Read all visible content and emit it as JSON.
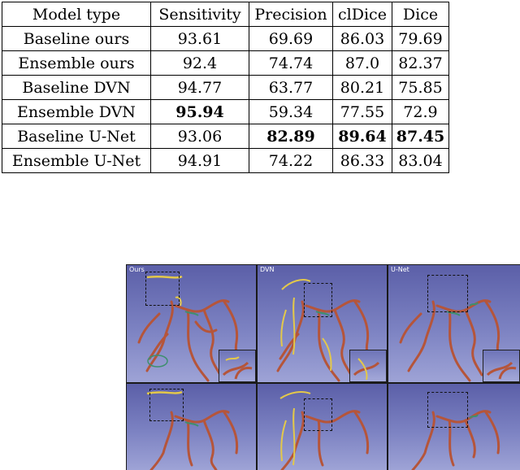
{
  "table": {
    "headers": [
      "Model type",
      "Sensitivity",
      "Precision",
      "clDice",
      "Dice"
    ],
    "rows": [
      {
        "cells": [
          "Baseline ours",
          "93.61",
          "69.69",
          "86.03",
          "79.69"
        ],
        "bold": []
      },
      {
        "cells": [
          "Ensemble ours",
          "92.4",
          "74.74",
          "87.0",
          "82.37"
        ],
        "bold": []
      },
      {
        "cells": [
          "Baseline DVN",
          "94.77",
          "63.77",
          "80.21",
          "75.85"
        ],
        "bold": []
      },
      {
        "cells": [
          "Ensemble DVN",
          "95.94",
          "59.34",
          "77.55",
          "72.9"
        ],
        "bold": [
          1
        ]
      },
      {
        "cells": [
          "Baseline U-Net",
          "93.06",
          "82.89",
          "89.64",
          "87.45"
        ],
        "bold": [
          2,
          3,
          4
        ]
      },
      {
        "cells": [
          "Ensemble U-Net",
          "94.91",
          "74.22",
          "86.33",
          "83.04"
        ],
        "bold": []
      }
    ]
  },
  "figure": {
    "panel_labels": [
      "Ours",
      "DVN",
      "U-Net"
    ],
    "colors": {
      "background_top": "#5b5fa8",
      "background_bottom": "#9ea3d6",
      "vessel": "#b5553a",
      "false_positive": "#e3c84a",
      "false_negative": "#3e8f6e"
    }
  }
}
